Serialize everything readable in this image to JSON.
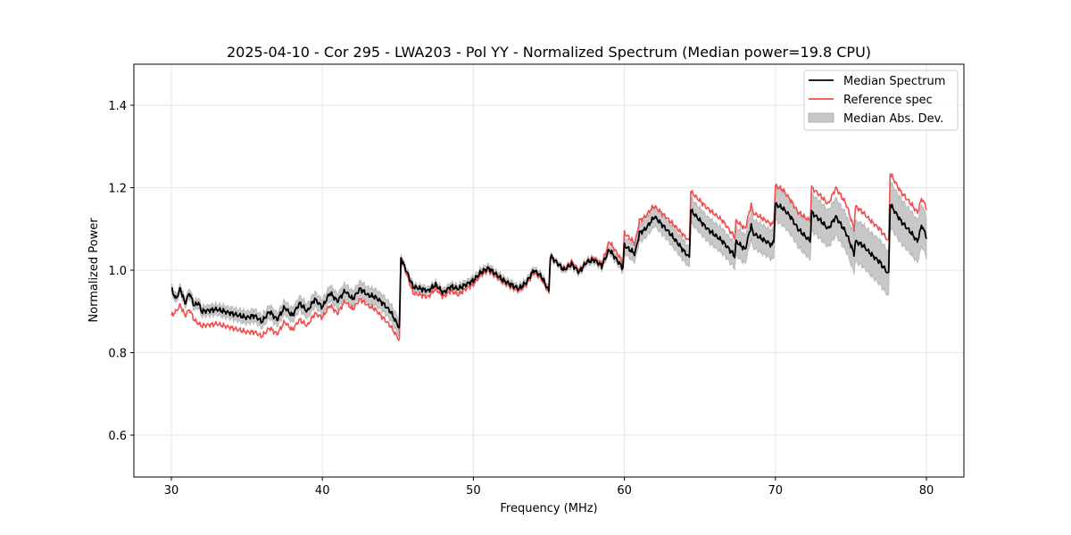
{
  "chart_data": {
    "type": "line",
    "title": "2025-04-10 - Cor 295 - LWA203 - Pol YY - Normalized Spectrum (Median power=19.8 CPU)",
    "xlabel": "Frequency (MHz)",
    "ylabel": "Normalized Power",
    "xlim": [
      27.5,
      82.5
    ],
    "ylim": [
      0.5,
      1.5
    ],
    "xticks": [
      30,
      40,
      50,
      60,
      70,
      80
    ],
    "xtick_labels": [
      "30",
      "40",
      "50",
      "60",
      "70",
      "80"
    ],
    "yticks": [
      0.6,
      0.8,
      1.0,
      1.2,
      1.4
    ],
    "ytick_labels": [
      "0.6",
      "0.8",
      "1.0",
      "1.2",
      "1.4"
    ],
    "grid": true,
    "legend_position": "top-right",
    "legend": [
      {
        "label": "Median Spectrum",
        "kind": "line",
        "color": "#000000"
      },
      {
        "label": "Reference spec",
        "kind": "line",
        "color": "#f05050"
      },
      {
        "label": "Median Abs. Dev.",
        "kind": "band",
        "color": "#c8c8c8"
      }
    ],
    "series": [
      {
        "name": "Median Spectrum",
        "color": "#000000",
        "x": [
          30.0,
          30.3,
          30.6,
          30.9,
          31.2,
          31.5,
          31.8,
          32.0,
          33.0,
          34.0,
          35.0,
          35.5,
          36.0,
          36.5,
          37.0,
          37.5,
          38.0,
          38.5,
          39.0,
          39.5,
          40.0,
          40.5,
          41.0,
          41.5,
          42.0,
          42.5,
          43.0,
          43.5,
          44.0,
          44.5,
          45.1,
          45.2,
          46.0,
          46.5,
          47.0,
          47.5,
          48.0,
          48.5,
          49.0,
          49.5,
          50.0,
          50.5,
          51.0,
          51.5,
          52.0,
          52.5,
          53.0,
          53.5,
          54.0,
          54.5,
          55.0,
          55.1,
          56.0,
          56.5,
          57.0,
          57.5,
          58.0,
          58.5,
          59.0,
          59.9,
          60.0,
          60.7,
          61.0,
          61.4,
          61.8,
          62.0,
          63.0,
          64.3,
          64.4,
          65.5,
          66.5,
          67.3,
          67.4,
          68.0,
          68.4,
          68.5,
          69.8,
          69.9,
          70.0,
          70.5,
          71.0,
          71.5,
          72.3,
          72.4,
          73.0,
          73.5,
          74.0,
          74.7,
          75.2,
          75.3,
          75.8,
          76.3,
          76.9,
          77.5,
          77.6,
          78.3,
          79.0,
          79.4,
          79.7,
          80.0
        ],
        "y": [
          0.955,
          0.93,
          0.955,
          0.92,
          0.945,
          0.915,
          0.92,
          0.9,
          0.905,
          0.895,
          0.885,
          0.89,
          0.875,
          0.9,
          0.88,
          0.91,
          0.89,
          0.92,
          0.9,
          0.93,
          0.91,
          0.945,
          0.925,
          0.95,
          0.93,
          0.955,
          0.94,
          0.935,
          0.92,
          0.9,
          0.86,
          1.03,
          0.96,
          0.955,
          0.95,
          0.965,
          0.945,
          0.96,
          0.955,
          0.965,
          0.975,
          0.995,
          1.005,
          0.99,
          0.975,
          0.965,
          0.955,
          0.97,
          1.0,
          0.985,
          0.95,
          1.035,
          1.0,
          1.015,
          0.995,
          1.02,
          1.025,
          1.01,
          1.05,
          1.005,
          1.06,
          1.04,
          1.09,
          1.1,
          1.12,
          1.13,
          1.09,
          1.03,
          1.145,
          1.1,
          1.07,
          1.035,
          1.07,
          1.05,
          1.11,
          1.09,
          1.06,
          1.075,
          1.16,
          1.15,
          1.13,
          1.1,
          1.07,
          1.14,
          1.12,
          1.1,
          1.13,
          1.09,
          1.04,
          1.07,
          1.06,
          1.04,
          1.02,
          0.99,
          1.16,
          1.12,
          1.09,
          1.07,
          1.11,
          1.08
        ]
      },
      {
        "name": "Reference spec",
        "color": "#f05050",
        "x": [
          30.0,
          30.3,
          30.6,
          30.9,
          31.2,
          31.5,
          31.8,
          32.0,
          33.0,
          34.0,
          35.0,
          35.5,
          36.0,
          36.5,
          37.0,
          37.5,
          38.0,
          38.5,
          39.0,
          39.5,
          40.0,
          40.5,
          41.0,
          41.5,
          42.0,
          42.5,
          43.0,
          43.5,
          44.0,
          44.5,
          45.1,
          45.2,
          46.0,
          46.5,
          47.0,
          47.5,
          48.0,
          48.5,
          49.0,
          49.5,
          50.0,
          50.5,
          51.0,
          51.5,
          52.0,
          52.5,
          53.0,
          53.5,
          54.0,
          54.5,
          55.0,
          55.1,
          56.0,
          56.5,
          57.0,
          57.5,
          58.0,
          58.5,
          59.0,
          59.9,
          60.0,
          60.7,
          61.0,
          61.4,
          61.8,
          62.0,
          63.0,
          64.3,
          64.4,
          65.5,
          66.5,
          67.3,
          67.4,
          68.0,
          68.4,
          68.5,
          69.8,
          69.9,
          70.0,
          70.5,
          71.0,
          71.5,
          72.3,
          72.4,
          73.0,
          73.5,
          74.0,
          74.7,
          75.2,
          75.3,
          75.8,
          76.3,
          76.9,
          77.5,
          77.6,
          78.3,
          79.0,
          79.4,
          79.7,
          80.0
        ],
        "y": [
          0.89,
          0.9,
          0.915,
          0.89,
          0.905,
          0.88,
          0.87,
          0.865,
          0.87,
          0.86,
          0.85,
          0.85,
          0.84,
          0.86,
          0.845,
          0.875,
          0.855,
          0.88,
          0.865,
          0.895,
          0.885,
          0.915,
          0.895,
          0.925,
          0.905,
          0.93,
          0.915,
          0.905,
          0.885,
          0.865,
          0.83,
          1.03,
          0.945,
          0.94,
          0.935,
          0.955,
          0.935,
          0.95,
          0.94,
          0.955,
          0.965,
          0.99,
          1.0,
          0.985,
          0.97,
          0.96,
          0.95,
          0.965,
          0.995,
          0.98,
          0.945,
          1.03,
          1.005,
          1.02,
          1.0,
          1.02,
          1.03,
          1.015,
          1.07,
          1.02,
          1.09,
          1.065,
          1.12,
          1.13,
          1.15,
          1.155,
          1.12,
          1.07,
          1.19,
          1.15,
          1.12,
          1.08,
          1.12,
          1.1,
          1.16,
          1.14,
          1.11,
          1.12,
          1.205,
          1.195,
          1.17,
          1.14,
          1.12,
          1.2,
          1.18,
          1.16,
          1.2,
          1.16,
          1.1,
          1.155,
          1.14,
          1.12,
          1.1,
          1.07,
          1.235,
          1.19,
          1.16,
          1.14,
          1.175,
          1.15
        ]
      }
    ],
    "band": {
      "name": "Median Abs. Dev.",
      "color": "#c8c8c8",
      "x": [
        30.0,
        32.0,
        35.0,
        40.0,
        45.1,
        45.2,
        50.0,
        55.0,
        55.1,
        58.0,
        59.9,
        60.0,
        64.3,
        64.4,
        67.3,
        67.4,
        69.8,
        69.9,
        72.3,
        72.4,
        75.2,
        75.3,
        77.5,
        77.6,
        80.0
      ],
      "halfwidth": [
        0.01,
        0.012,
        0.015,
        0.018,
        0.02,
        0.008,
        0.01,
        0.008,
        0.006,
        0.008,
        0.01,
        0.02,
        0.025,
        0.03,
        0.03,
        0.035,
        0.035,
        0.04,
        0.045,
        0.045,
        0.045,
        0.05,
        0.055,
        0.055,
        0.05
      ]
    }
  }
}
